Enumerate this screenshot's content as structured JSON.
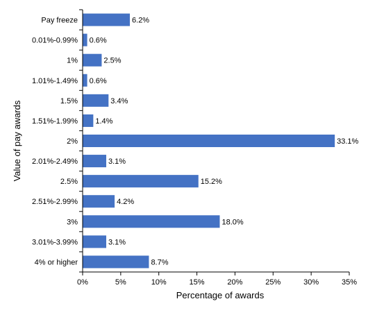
{
  "chart_data": {
    "type": "bar",
    "orientation": "horizontal",
    "categories": [
      "Pay freeze",
      "0.01%-0.99%",
      "1%",
      "1.01%-1.49%",
      "1.5%",
      "1.51%-1.99%",
      "2%",
      "2.01%-2.49%",
      "2.5%",
      "2.51%-2.99%",
      "3%",
      "3.01%-3.99%",
      "4% or higher"
    ],
    "values": [
      6.2,
      0.6,
      2.5,
      0.6,
      3.4,
      1.4,
      33.1,
      3.1,
      15.2,
      4.2,
      18.0,
      3.1,
      8.7
    ],
    "data_labels": [
      "6.2%",
      "0.6%",
      "2.5%",
      "0.6%",
      "3.4%",
      "1.4%",
      "33.1%",
      "3.1%",
      "15.2%",
      "4.2%",
      "18.0%",
      "3.1%",
      "8.7%"
    ],
    "xlabel": "Percentage of awards",
    "ylabel": "Value of pay awards",
    "xlim": [
      0,
      35
    ],
    "xticks": [
      0,
      5,
      10,
      15,
      20,
      25,
      30,
      35
    ],
    "xtick_labels": [
      "0%",
      "5%",
      "10%",
      "15%",
      "20%",
      "25%",
      "30%",
      "35%"
    ],
    "grid": false,
    "legend": "none",
    "bar_color": "#4472C4"
  }
}
